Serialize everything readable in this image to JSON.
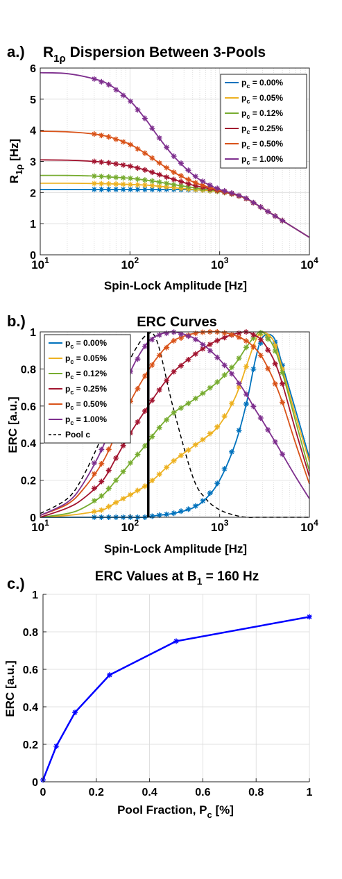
{
  "panels": [
    {
      "panel_label": "a.)",
      "title_main": "R",
      "title_sub": "1ρ",
      "title_rest": " Dispersion Between 3-Pools",
      "ylabel_main": "R",
      "ylabel_sub": "1ρ",
      "ylabel_rest": " [Hz]",
      "xlabel": "Spin-Lock Amplitude [Hz]",
      "xtick_labels": [
        "10",
        "10",
        "10",
        "10"
      ],
      "xtick_exps": [
        "1",
        "2",
        "3",
        "4"
      ],
      "ytick_labels": [
        "0",
        "1",
        "2",
        "3",
        "4",
        "5",
        "6"
      ],
      "legend": [
        {
          "sym": "p",
          "sub": "c",
          "rest": " = 0.00%"
        },
        {
          "sym": "p",
          "sub": "c",
          "rest": " = 0.05%"
        },
        {
          "sym": "p",
          "sub": "c",
          "rest": " = 0.12%"
        },
        {
          "sym": "p",
          "sub": "c",
          "rest": " = 0.25%"
        },
        {
          "sym": "p",
          "sub": "c",
          "rest": " = 0.50%"
        },
        {
          "sym": "p",
          "sub": "c",
          "rest": " = 1.00%"
        }
      ]
    },
    {
      "panel_label": "b.)",
      "title_main": "ERC Curves",
      "ylabel_main": "ERC [a.u.]",
      "xlabel": "Spin-Lock Amplitude [Hz]",
      "xtick_labels": [
        "10",
        "10",
        "10",
        "10"
      ],
      "xtick_exps": [
        "1",
        "2",
        "3",
        "4"
      ],
      "ytick_labels": [
        "0",
        "0.2",
        "0.4",
        "0.6",
        "0.8",
        "1"
      ],
      "legend": [
        {
          "sym": "p",
          "sub": "c",
          "rest": " = 0.00%"
        },
        {
          "sym": "p",
          "sub": "c",
          "rest": " = 0.05%"
        },
        {
          "sym": "p",
          "sub": "c",
          "rest": " = 0.12%"
        },
        {
          "sym": "p",
          "sub": "c",
          "rest": " = 0.25%"
        },
        {
          "sym": "p",
          "sub": "c",
          "rest": " = 0.50%"
        },
        {
          "sym": "p",
          "sub": "c",
          "rest": " = 1.00%"
        },
        {
          "sym": "Pool c",
          "sub": "",
          "rest": ""
        }
      ]
    },
    {
      "panel_label": "c.)",
      "title_main": "ERC Values at B",
      "title_sub": "1",
      "title_rest": " = 160 Hz",
      "ylabel_main": "ERC [a.u.]",
      "xlabel_main": "Pool Fraction, P",
      "xlabel_sub": "c",
      "xlabel_rest": " [%]",
      "xtick_labels": [
        "0",
        "0.2",
        "0.4",
        "0.6",
        "0.8",
        "1"
      ],
      "ytick_labels": [
        "0",
        "0.2",
        "0.4",
        "0.6",
        "0.8",
        "1"
      ]
    }
  ],
  "colors": {
    "s0": "#0072BD",
    "s1": "#EDB120",
    "s2": "#77AC30",
    "s3": "#A2142F",
    "s4": "#D95319",
    "s5": "#7E2F8E",
    "pool": "#000000",
    "c_line": "#0000FF",
    "grid": "#d9d9d9"
  },
  "chart_data": [
    {
      "type": "line",
      "title": "R1ρ Dispersion Between 3-Pools",
      "xscale": "log",
      "xlim": [
        10,
        10000
      ],
      "ylim": [
        0,
        6
      ],
      "xlabel": "Spin-Lock Amplitude [Hz]",
      "ylabel": "R1ρ [Hz]",
      "grid": true,
      "legend_position": "top-right",
      "x": [
        10,
        20,
        40,
        60,
        100,
        150,
        200,
        300,
        500,
        700,
        1000,
        1500,
        2000,
        3000,
        5000,
        10000
      ],
      "series": [
        {
          "name": "pc = 0.00%",
          "values": [
            2.1,
            2.1,
            2.1,
            2.1,
            2.1,
            2.1,
            2.1,
            2.1,
            2.09,
            2.07,
            2.03,
            1.93,
            1.8,
            1.5,
            1.1,
            0.56
          ]
        },
        {
          "name": "pc = 0.05%",
          "values": [
            2.3,
            2.3,
            2.29,
            2.28,
            2.26,
            2.24,
            2.21,
            2.16,
            2.1,
            2.07,
            2.03,
            1.93,
            1.8,
            1.5,
            1.1,
            0.56
          ]
        },
        {
          "name": "pc = 0.12%",
          "values": [
            2.55,
            2.55,
            2.53,
            2.5,
            2.46,
            2.4,
            2.35,
            2.26,
            2.16,
            2.1,
            2.04,
            1.93,
            1.8,
            1.5,
            1.1,
            0.56
          ]
        },
        {
          "name": "pc = 0.25%",
          "values": [
            3.05,
            3.04,
            3.0,
            2.95,
            2.85,
            2.72,
            2.6,
            2.43,
            2.24,
            2.15,
            2.05,
            1.93,
            1.8,
            1.5,
            1.1,
            0.56
          ]
        },
        {
          "name": "pc = 0.50%",
          "values": [
            3.97,
            3.95,
            3.88,
            3.78,
            3.55,
            3.25,
            3.0,
            2.67,
            2.35,
            2.2,
            2.07,
            1.94,
            1.8,
            1.5,
            1.1,
            0.56
          ]
        },
        {
          "name": "pc = 1.00%",
          "values": [
            5.85,
            5.82,
            5.65,
            5.45,
            4.95,
            4.35,
            3.85,
            3.2,
            2.58,
            2.3,
            2.1,
            1.95,
            1.81,
            1.5,
            1.1,
            0.56
          ]
        }
      ]
    },
    {
      "type": "line",
      "title": "ERC Curves",
      "xscale": "log",
      "xlim": [
        10,
        10000
      ],
      "ylim": [
        0,
        1
      ],
      "xlabel": "Spin-Lock Amplitude [Hz]",
      "ylabel": "ERC [a.u.]",
      "grid": true,
      "legend_position": "top-left",
      "vertical_line_x": 160,
      "x": [
        10,
        20,
        30,
        50,
        70,
        100,
        150,
        200,
        300,
        500,
        700,
        1000,
        1500,
        2000,
        2500,
        3000,
        4000,
        5000,
        7000,
        10000
      ],
      "series": [
        {
          "name": "pc = 0.00%",
          "values": [
            0,
            0,
            0,
            0,
            0,
            0,
            0,
            0.01,
            0.02,
            0.05,
            0.1,
            0.2,
            0.4,
            0.62,
            0.85,
            0.97,
            0.97,
            0.82,
            0.58,
            0.32
          ]
        },
        {
          "name": "pc = 0.05%",
          "values": [
            0,
            0.01,
            0.02,
            0.04,
            0.08,
            0.12,
            0.17,
            0.22,
            0.3,
            0.38,
            0.43,
            0.5,
            0.65,
            0.82,
            0.95,
            1.0,
            0.95,
            0.8,
            0.55,
            0.3
          ]
        },
        {
          "name": "pc = 0.12%",
          "values": [
            0,
            0.02,
            0.05,
            0.12,
            0.2,
            0.29,
            0.39,
            0.47,
            0.56,
            0.63,
            0.68,
            0.74,
            0.83,
            0.92,
            0.98,
            1.0,
            0.92,
            0.78,
            0.52,
            0.25
          ]
        },
        {
          "name": "pc = 0.25%",
          "values": [
            0,
            0.05,
            0.1,
            0.2,
            0.32,
            0.45,
            0.58,
            0.67,
            0.78,
            0.87,
            0.92,
            0.96,
            0.99,
            1.0,
            0.98,
            0.95,
            0.85,
            0.72,
            0.47,
            0.22
          ]
        },
        {
          "name": "pc = 0.50%",
          "values": [
            0.01,
            0.07,
            0.15,
            0.3,
            0.45,
            0.62,
            0.77,
            0.86,
            0.95,
            0.99,
            1.0,
            1.0,
            0.98,
            0.95,
            0.91,
            0.86,
            0.74,
            0.62,
            0.4,
            0.18
          ]
        },
        {
          "name": "pc = 1.00%",
          "values": [
            0.01,
            0.08,
            0.18,
            0.38,
            0.58,
            0.78,
            0.93,
            0.98,
            1.0,
            0.97,
            0.92,
            0.85,
            0.75,
            0.66,
            0.58,
            0.52,
            0.42,
            0.34,
            0.22,
            0.1
          ]
        },
        {
          "name": "Pool c",
          "dashed": true,
          "values": [
            0.02,
            0.1,
            0.22,
            0.45,
            0.65,
            0.85,
            0.98,
            0.95,
            0.6,
            0.22,
            0.1,
            0.04,
            0.01,
            0,
            0,
            0,
            0,
            0,
            0,
            0
          ]
        }
      ]
    },
    {
      "type": "line",
      "title": "ERC Values at B1 = 160 Hz",
      "xlim": [
        0,
        1
      ],
      "ylim": [
        0,
        1
      ],
      "xlabel": "Pool Fraction, Pc [%]",
      "ylabel": "ERC [a.u.]",
      "grid": true,
      "x": [
        0,
        0.05,
        0.12,
        0.25,
        0.5,
        1.0
      ],
      "series": [
        {
          "values": [
            0.01,
            0.19,
            0.37,
            0.57,
            0.75,
            0.88
          ]
        }
      ]
    }
  ]
}
